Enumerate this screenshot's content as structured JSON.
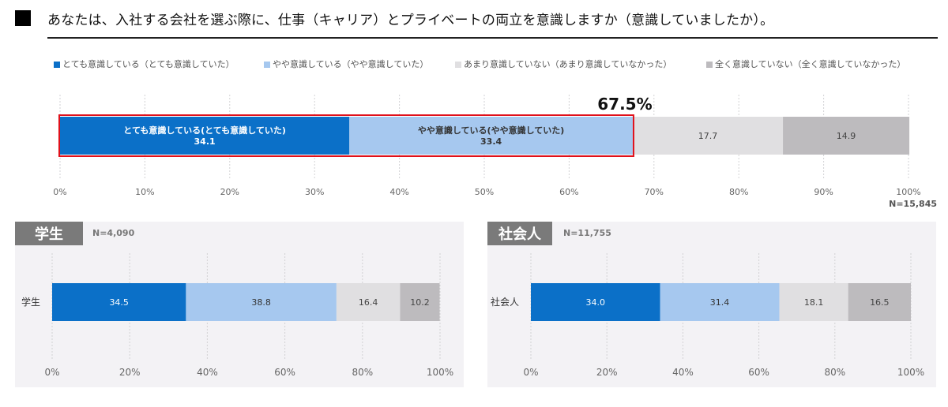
{
  "title": "あなたは、入社する会社を選ぶ際に、仕事（キャリア）とプライベートの両立を意識しますか（意識していましたか）。",
  "legend": [
    {
      "label": "とても意識している（とても意識していた）",
      "color": "#0b70c8"
    },
    {
      "label": "やや意識している（やや意識していた）",
      "color": "#a6c8ef"
    },
    {
      "label": "あまり意識していない（あまり意識していなかった）",
      "color": "#e0dfe1"
    },
    {
      "label": "全く意識していない（全く意識していなかった）",
      "color": "#bdbbbe"
    }
  ],
  "highlight_label": "67.5%",
  "highlight_color": "#e0101a",
  "chart_data": [
    {
      "type": "bar",
      "orientation": "horizontal",
      "stacked": true,
      "n_label": "N=15,845",
      "categories": [
        ""
      ],
      "series": [
        {
          "name": "とても意識している（とても意識していた）",
          "values": [
            34.1
          ],
          "inbar_label": "とても意識している(とても意識していた)"
        },
        {
          "name": "やや意識している（やや意識していた）",
          "values": [
            33.4
          ],
          "inbar_label": "やや意識している(やや意識していた)"
        },
        {
          "name": "あまり意識していない（あまり意識していなかった）",
          "values": [
            17.7
          ]
        },
        {
          "name": "全く意識していない（全く意識していなかった）",
          "values": [
            14.9
          ]
        }
      ],
      "xlim": [
        0,
        100
      ],
      "xticks": [
        "0%",
        "10%",
        "20%",
        "30%",
        "40%",
        "50%",
        "60%",
        "70%",
        "80%",
        "90%",
        "100%"
      ],
      "grid": true
    },
    {
      "type": "bar",
      "orientation": "horizontal",
      "stacked": true,
      "title": "学生",
      "n_label": "N=4,090",
      "categories": [
        "学生"
      ],
      "series": [
        {
          "name": "とても意識している（とても意識していた）",
          "values": [
            34.5
          ]
        },
        {
          "name": "やや意識している（やや意識していた）",
          "values": [
            38.8
          ]
        },
        {
          "name": "あまり意識していない（あまり意識していなかった）",
          "values": [
            16.4
          ]
        },
        {
          "name": "全く意識していない（全く意識していなかった）",
          "values": [
            10.2
          ]
        }
      ],
      "xlim": [
        0,
        100
      ],
      "xticks": [
        "0%",
        "20%",
        "40%",
        "60%",
        "80%",
        "100%"
      ],
      "grid": true
    },
    {
      "type": "bar",
      "orientation": "horizontal",
      "stacked": true,
      "title": "社会人",
      "n_label": "N=11,755",
      "categories": [
        "社会人"
      ],
      "series": [
        {
          "name": "とても意識している（とても意識していた）",
          "values": [
            34.0
          ]
        },
        {
          "name": "やや意識している（やや意識していた）",
          "values": [
            31.4
          ]
        },
        {
          "name": "あまり意識していない（あまり意識していなかった）",
          "values": [
            18.1
          ]
        },
        {
          "name": "全く意識していない（全く意識していなかった）",
          "values": [
            16.5
          ]
        }
      ],
      "xlim": [
        0,
        100
      ],
      "xticks": [
        "0%",
        "20%",
        "40%",
        "60%",
        "80%",
        "100%"
      ],
      "grid": true
    }
  ]
}
